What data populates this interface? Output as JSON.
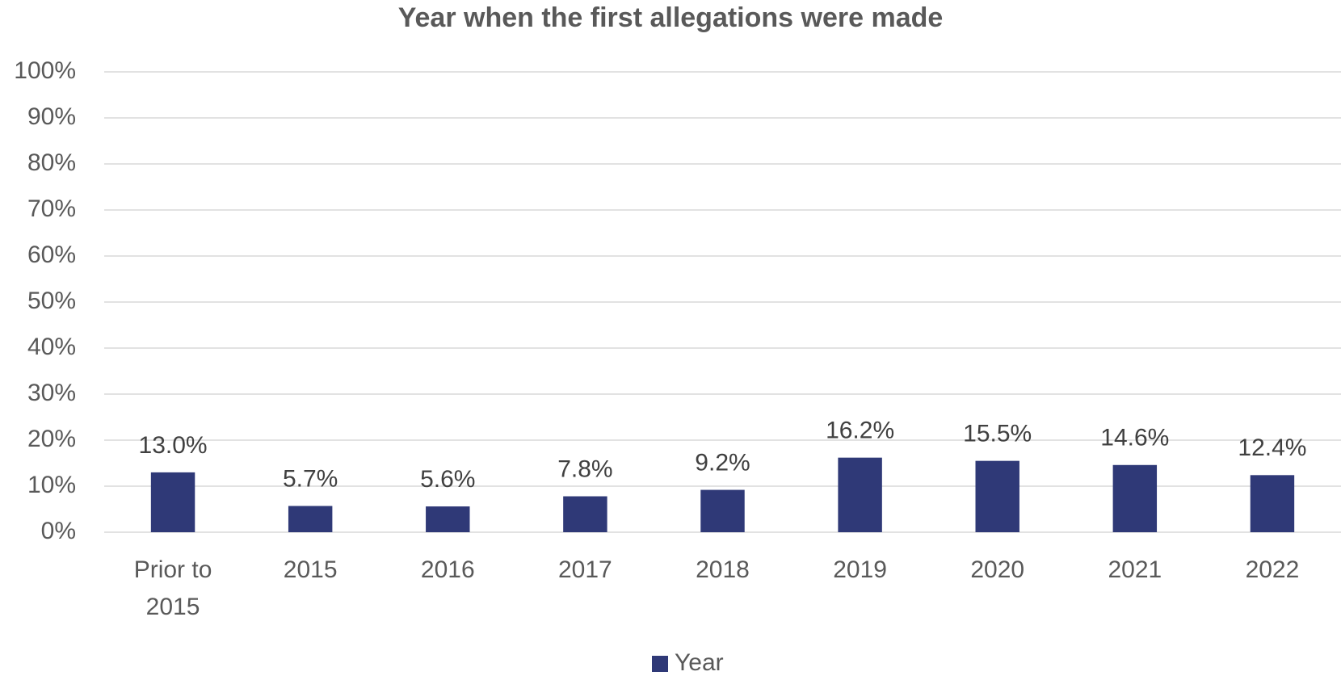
{
  "chart_data": {
    "type": "bar",
    "title": "Year when the first allegations were made",
    "categories": [
      "Prior to 2015",
      "2015",
      "2016",
      "2017",
      "2018",
      "2019",
      "2020",
      "2021",
      "2022"
    ],
    "series": [
      {
        "name": "Year",
        "color": "#2f3977",
        "values": [
          13.0,
          5.7,
          5.6,
          7.8,
          9.2,
          16.2,
          15.5,
          14.6,
          12.4
        ],
        "value_labels": [
          "13.0%",
          "5.7%",
          "5.6%",
          "7.8%",
          "9.2%",
          "16.2%",
          "15.5%",
          "14.6%",
          "12.4%"
        ]
      }
    ],
    "ylim": [
      0,
      100
    ],
    "yticks": [
      {
        "value": 0,
        "label": "0%"
      },
      {
        "value": 10,
        "label": "10%"
      },
      {
        "value": 20,
        "label": "20%"
      },
      {
        "value": 30,
        "label": "30%"
      },
      {
        "value": 40,
        "label": "40%"
      },
      {
        "value": 50,
        "label": "50%"
      },
      {
        "value": 60,
        "label": "60%"
      },
      {
        "value": 70,
        "label": "70%"
      },
      {
        "value": 80,
        "label": "80%"
      },
      {
        "value": 90,
        "label": "90%"
      },
      {
        "value": 100,
        "label": "100%"
      }
    ],
    "grid": true,
    "legend": "bottom"
  }
}
